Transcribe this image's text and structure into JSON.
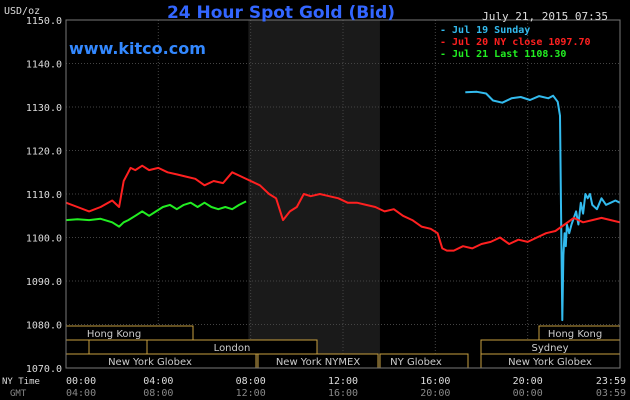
{
  "header": {
    "title": "24 Hour Spot Gold (Bid)",
    "units": "USD/oz",
    "date": "July 21, 2015 07:35",
    "watermark": "www.kitco.com"
  },
  "legend": [
    {
      "label": "Jul 19 Sunday",
      "color": "#33bbee"
    },
    {
      "label": "Jul 20 NY close 1097.70",
      "color": "#ff2020"
    },
    {
      "label": "Jul 21 Last 1108.30",
      "color": "#22ee22"
    }
  ],
  "axes": {
    "ny_time_label": "NY Time",
    "gmt_label": "GMT",
    "x_ticks_ny": [
      "00:00",
      "04:00",
      "08:00",
      "12:00",
      "16:00",
      "20:00",
      "23:59"
    ],
    "x_ticks_gmt": [
      "04:00",
      "08:00",
      "12:00",
      "16:00",
      "20:00",
      "00:00",
      "03:59"
    ]
  },
  "sessions": {
    "hong_kong_1": "Hong Kong",
    "london": "London",
    "ny_globex_1": "New York Globex",
    "ny_nymex": "New York NYMEX",
    "ny_globex_2": "NY Globex",
    "hong_kong_2": "Hong Kong",
    "sydney": "Sydney",
    "ny_globex_3": "New York Globex"
  },
  "chart_data": {
    "type": "line",
    "title": "24 Hour Spot Gold (Bid)",
    "ylabel": "USD/oz",
    "xlabel": "NY Time / GMT",
    "ylim": [
      1070,
      1150
    ],
    "xlim": [
      0,
      24
    ],
    "y_ticks": [
      1070.0,
      1080.0,
      1090.0,
      1100.0,
      1110.0,
      1120.0,
      1130.0,
      1140.0,
      1150.0
    ],
    "shaded_region_hours": [
      7.9,
      13.6
    ],
    "grid": true,
    "legend_position": "top-right",
    "series": [
      {
        "name": "Jul 19 Sunday",
        "color": "#33bbee",
        "x": [
          17.3,
          17.8,
          18.2,
          18.5,
          18.9,
          19.3,
          19.7,
          20.1,
          20.5,
          20.9,
          21.1,
          21.3,
          21.4,
          21.45,
          21.5,
          21.55,
          21.6,
          21.65,
          21.7,
          21.8,
          21.9,
          22.0,
          22.1,
          22.2,
          22.3,
          22.4,
          22.5,
          22.6,
          22.7,
          22.8,
          23.0,
          23.2,
          23.4,
          23.6,
          23.8,
          23.99
        ],
        "y": [
          1133.4,
          1133.5,
          1133.1,
          1131.5,
          1131.0,
          1132.0,
          1132.3,
          1131.6,
          1132.5,
          1132.0,
          1132.6,
          1131.2,
          1128.0,
          1105.0,
          1081.0,
          1096.0,
          1101.0,
          1098.0,
          1103.0,
          1101.0,
          1103.0,
          1104.5,
          1106.0,
          1103.0,
          1108.0,
          1105.5,
          1110.0,
          1109.0,
          1110.0,
          1107.5,
          1106.5,
          1109.0,
          1107.5,
          1108.0,
          1108.5,
          1108.0
        ]
      },
      {
        "name": "Jul 20 NY close 1097.70",
        "color": "#ff2020",
        "x": [
          0.0,
          0.5,
          1.0,
          1.5,
          2.0,
          2.3,
          2.5,
          2.8,
          3.0,
          3.3,
          3.6,
          4.0,
          4.4,
          4.8,
          5.2,
          5.6,
          6.0,
          6.4,
          6.8,
          7.2,
          7.6,
          8.0,
          8.4,
          8.8,
          9.1,
          9.4,
          9.7,
          10.0,
          10.3,
          10.6,
          11.0,
          11.4,
          11.8,
          12.2,
          12.6,
          13.0,
          13.4,
          13.8,
          14.2,
          14.6,
          15.0,
          15.4,
          15.8,
          16.1,
          16.3,
          16.5,
          16.8,
          17.2,
          17.6,
          18.0,
          18.4,
          18.8,
          19.2,
          19.6,
          20.0,
          20.4,
          20.8,
          21.2,
          21.6,
          22.0,
          22.4,
          22.8,
          23.2,
          23.6,
          23.99
        ],
        "y": [
          1108.0,
          1107.0,
          1106.0,
          1107.0,
          1108.5,
          1107.0,
          1113.0,
          1116.0,
          1115.5,
          1116.5,
          1115.5,
          1116.0,
          1115.0,
          1114.5,
          1114.0,
          1113.5,
          1112.0,
          1113.0,
          1112.5,
          1115.0,
          1114.0,
          1113.0,
          1112.0,
          1110.0,
          1109.0,
          1104.0,
          1106.0,
          1107.0,
          1110.0,
          1109.5,
          1110.0,
          1109.5,
          1109.0,
          1108.0,
          1108.0,
          1107.5,
          1107.0,
          1106.0,
          1106.5,
          1105.0,
          1104.0,
          1102.5,
          1102.0,
          1101.0,
          1097.5,
          1097.0,
          1097.0,
          1098.0,
          1097.5,
          1098.5,
          1099.0,
          1100.0,
          1098.5,
          1099.5,
          1099.0,
          1100.0,
          1101.0,
          1101.5,
          1103.0,
          1104.5,
          1103.5,
          1104.0,
          1104.5,
          1104.0,
          1103.5
        ]
      },
      {
        "name": "Jul 21 Last 1108.30",
        "color": "#22ee22",
        "x": [
          0.0,
          0.5,
          1.0,
          1.5,
          2.0,
          2.3,
          2.5,
          2.7,
          3.0,
          3.3,
          3.6,
          3.9,
          4.2,
          4.5,
          4.8,
          5.1,
          5.4,
          5.7,
          6.0,
          6.3,
          6.6,
          6.9,
          7.2,
          7.5,
          7.8
        ],
        "y": [
          1104.0,
          1104.2,
          1104.0,
          1104.3,
          1103.5,
          1102.5,
          1103.5,
          1104.0,
          1105.0,
          1106.0,
          1105.0,
          1106.0,
          1107.0,
          1107.5,
          1106.5,
          1107.5,
          1108.0,
          1107.0,
          1108.0,
          1107.0,
          1106.5,
          1107.0,
          1106.5,
          1107.5,
          1108.3
        ]
      }
    ]
  }
}
